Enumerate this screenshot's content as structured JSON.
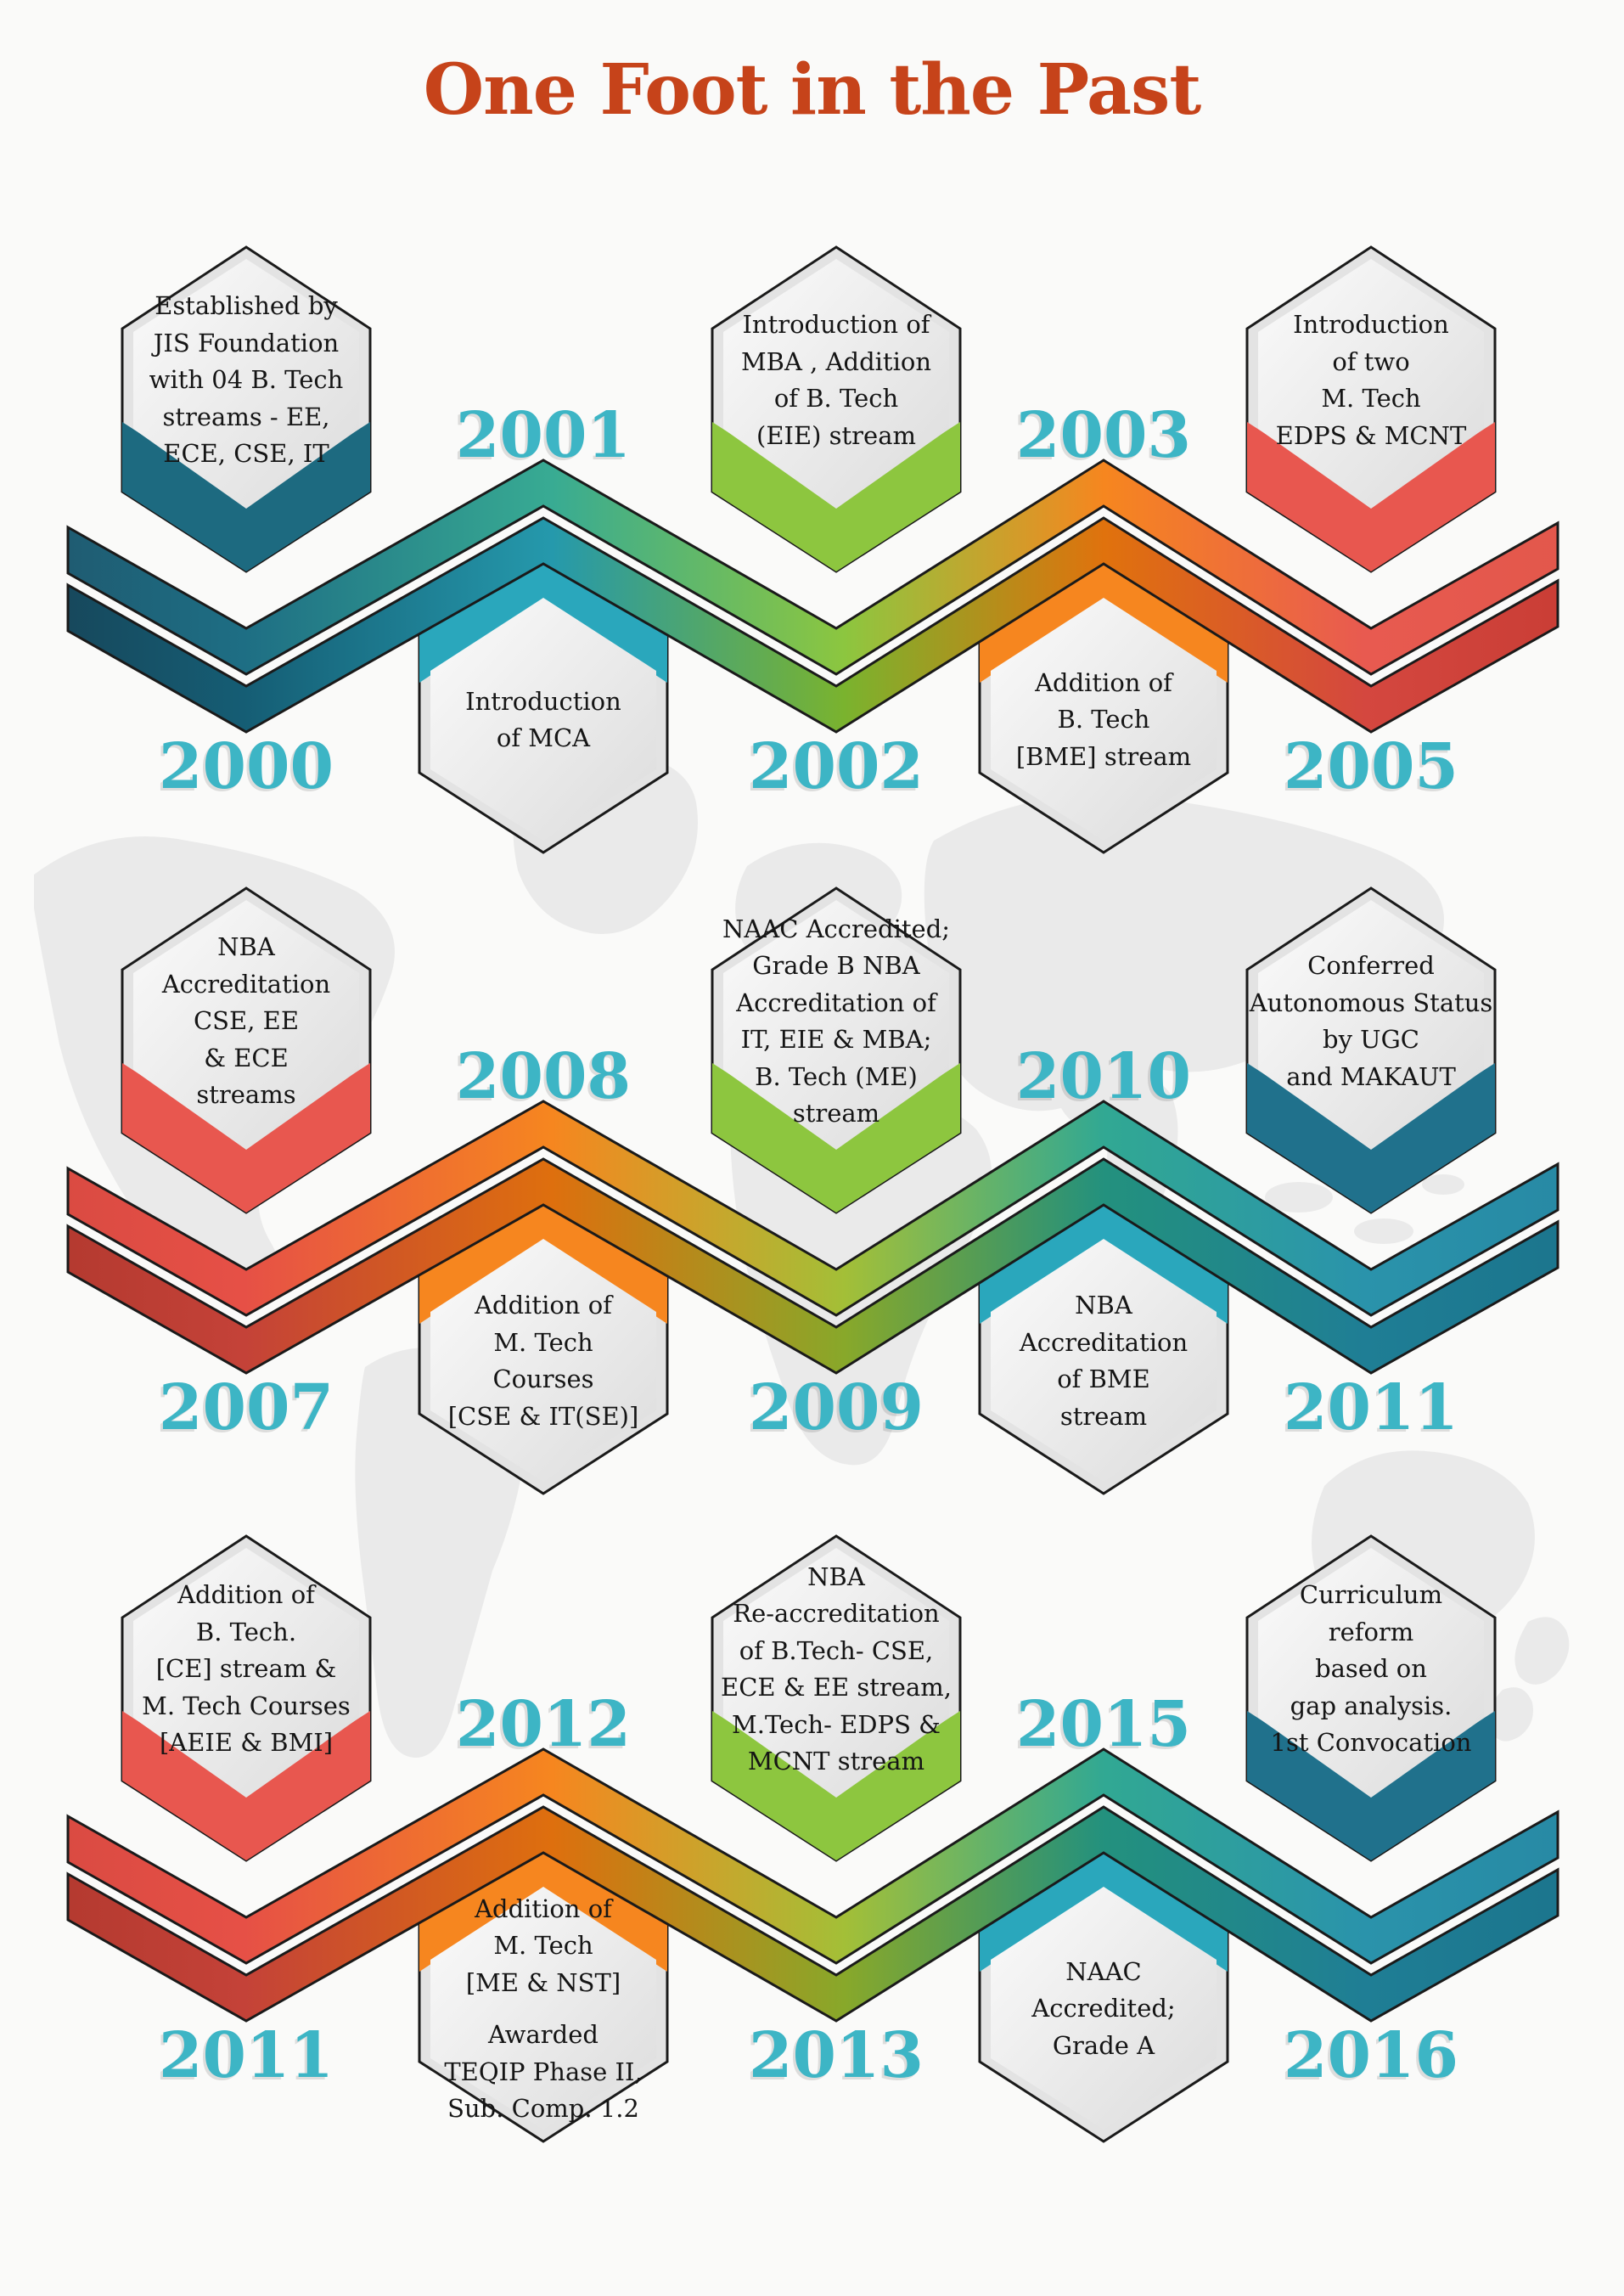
{
  "title": "One Foot in the Past",
  "colors": {
    "title_text": "#c6431a",
    "year_text": "#3db5c5",
    "hexagon_body_light": "#fbfbfb",
    "hexagon_body_dark": "#dcdcdc",
    "outline": "#1a1a1a",
    "map_gray": "#dcdcdc"
  },
  "sections": [
    {
      "name": "2000-2005",
      "ribbon_main_stops": [
        [
          0.03,
          "#1f5a70"
        ],
        [
          0.15,
          "#1e6e84"
        ],
        [
          0.34,
          "#38ab93"
        ],
        [
          0.52,
          "#8cc63f"
        ],
        [
          0.68,
          "#f6861f"
        ],
        [
          0.84,
          "#e85a50"
        ],
        [
          0.97,
          "#e2574b"
        ]
      ],
      "ribbon_echo_stops": [
        [
          0.03,
          "#17465a"
        ],
        [
          0.15,
          "#155d74"
        ],
        [
          0.34,
          "#2599ac"
        ],
        [
          0.52,
          "#7ab32e"
        ],
        [
          0.68,
          "#e0720d"
        ],
        [
          0.84,
          "#d4473f"
        ],
        [
          0.97,
          "#c93d35"
        ]
      ],
      "top_items": [
        {
          "accent": "#1d6a80",
          "lines": [
            "Established by",
            "JIS Foundation",
            "with  04 B. Tech",
            "streams - EE,",
            "ECE, CSE,  IT"
          ]
        },
        {
          "accent": "#8dc63f",
          "lines": [
            "Introduction of",
            "MBA , Addition",
            "of B. Tech",
            "(EIE) stream"
          ]
        },
        {
          "accent": "#e8574f",
          "lines": [
            "Introduction",
            "of two",
            "M. Tech",
            "EDPS & MCNT"
          ]
        }
      ],
      "bottom_items": [
        {
          "accent": "#2aa7bc",
          "lines": [
            "Introduction",
            "of MCA"
          ]
        },
        {
          "accent": "#f6861f",
          "lines": [
            "Addition of",
            "B. Tech",
            "[BME] stream"
          ]
        }
      ],
      "top_years": [
        {
          "year": "2001"
        },
        {
          "year": "2003"
        }
      ],
      "bottom_years": [
        {
          "year": "2000"
        },
        {
          "year": "2002"
        },
        {
          "year": "2005"
        }
      ]
    },
    {
      "name": "2007-2011",
      "ribbon_main_stops": [
        [
          0.03,
          "#d94a42"
        ],
        [
          0.15,
          "#e65046"
        ],
        [
          0.34,
          "#f6861f"
        ],
        [
          0.52,
          "#a3bf37"
        ],
        [
          0.68,
          "#31a893"
        ],
        [
          0.84,
          "#2a93ab"
        ],
        [
          0.97,
          "#2789a4"
        ]
      ],
      "ribbon_echo_stops": [
        [
          0.03,
          "#b3392f"
        ],
        [
          0.15,
          "#c44238"
        ],
        [
          0.34,
          "#de6f0e"
        ],
        [
          0.52,
          "#88a82a"
        ],
        [
          0.68,
          "#23917e"
        ],
        [
          0.84,
          "#1f7e95"
        ],
        [
          0.97,
          "#1b758d"
        ]
      ],
      "top_items": [
        {
          "accent": "#e8574f",
          "lines": [
            "NBA",
            "Accreditation",
            "CSE, EE",
            "& ECE",
            "streams"
          ]
        },
        {
          "accent": "#8dc63f",
          "lines": [
            "NAAC Accredited;",
            "Grade B NBA",
            "Accreditation of",
            "IT, EIE & MBA;",
            "B. Tech (ME)",
            "stream"
          ]
        },
        {
          "accent": "#20718c",
          "lines": [
            "Conferred",
            "Autonomous Status",
            "by UGC",
            "and MAKAUT"
          ]
        }
      ],
      "bottom_items": [
        {
          "accent": "#f6861f",
          "lines": [
            "Addition of",
            "M. Tech",
            "Courses",
            "[CSE & IT(SE)]"
          ]
        },
        {
          "accent": "#2aa7bc",
          "lines": [
            "NBA",
            "Accreditation",
            "of BME",
            "stream"
          ]
        }
      ],
      "top_years": [
        {
          "year": "2008"
        },
        {
          "year": "2010"
        }
      ],
      "bottom_years": [
        {
          "year": "2007"
        },
        {
          "year": "2009"
        },
        {
          "year": "2011"
        }
      ]
    },
    {
      "name": "2011-2016",
      "ribbon_main_stops": [
        [
          0.03,
          "#d94a42"
        ],
        [
          0.15,
          "#e65046"
        ],
        [
          0.34,
          "#f6861f"
        ],
        [
          0.52,
          "#a3bf37"
        ],
        [
          0.68,
          "#31a893"
        ],
        [
          0.84,
          "#2a93ab"
        ],
        [
          0.97,
          "#2789a4"
        ]
      ],
      "ribbon_echo_stops": [
        [
          0.03,
          "#b3392f"
        ],
        [
          0.15,
          "#c44238"
        ],
        [
          0.34,
          "#de6f0e"
        ],
        [
          0.52,
          "#88a82a"
        ],
        [
          0.68,
          "#23917e"
        ],
        [
          0.84,
          "#1f7e95"
        ],
        [
          0.97,
          "#1b758d"
        ]
      ],
      "top_items": [
        {
          "accent": "#e8574f",
          "lines": [
            "Addition of",
            "B. Tech.",
            "[CE] stream &",
            "M. Tech Courses",
            "[AEIE & BMI]"
          ]
        },
        {
          "accent": "#8dc63f",
          "lines": [
            "NBA",
            "Re-accreditation",
            "of B.Tech- CSE,",
            "ECE & EE stream,",
            "M.Tech- EDPS &",
            "MCNT stream"
          ]
        },
        {
          "accent": "#20718c",
          "lines": [
            "Curriculum",
            "reform",
            "based on",
            "gap analysis.",
            "1st Convocation"
          ]
        }
      ],
      "bottom_items": [
        {
          "accent": "#f6861f",
          "lines": [
            "Addition of",
            "M. Tech",
            "[ME & NST]",
            "",
            "Awarded",
            "TEQIP Phase II,",
            "Sub. Comp. 1.2"
          ]
        },
        {
          "accent": "#2aa7bc",
          "lines": [
            "NAAC",
            "Accredited;",
            "Grade  A"
          ]
        }
      ],
      "top_years": [
        {
          "year": "2012"
        },
        {
          "year": "2015"
        }
      ],
      "bottom_years": [
        {
          "year": "2011"
        },
        {
          "year": "2013"
        },
        {
          "year": "2016"
        }
      ]
    }
  ]
}
